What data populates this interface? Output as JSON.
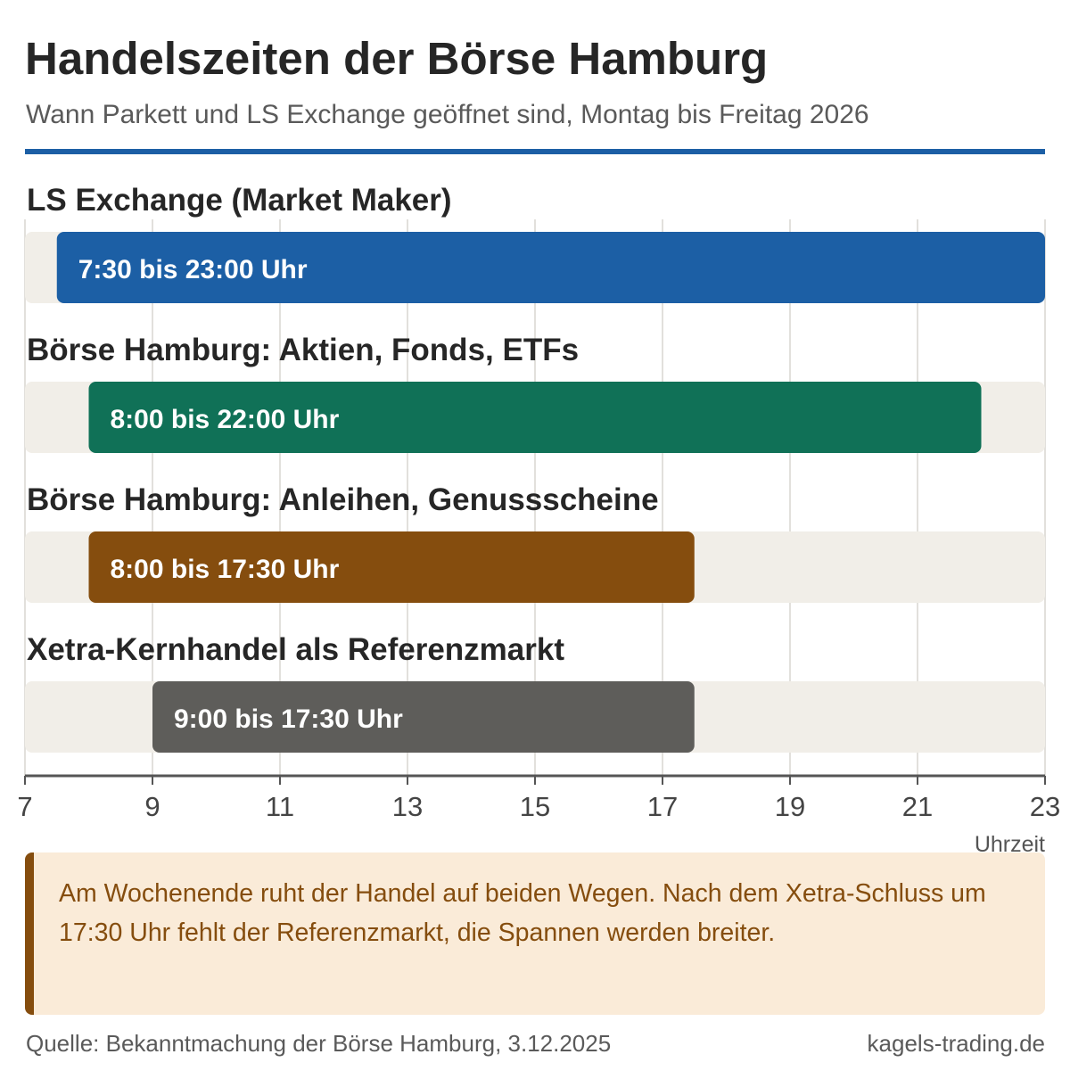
{
  "header": {
    "title": "Handelszeiten der Börse Hamburg",
    "subtitle": "Wann Parkett und LS Exchange geöffnet sind, Montag bis Freitag 2026"
  },
  "chart_data": {
    "type": "bar",
    "orientation": "horizontal-range",
    "xlabel": "Uhrzeit",
    "xlim": [
      7,
      23
    ],
    "xticks": [
      7,
      9,
      11,
      13,
      15,
      17,
      19,
      21,
      23
    ],
    "grid": true,
    "series": [
      {
        "name": "LS Exchange (Market Maker)",
        "start": 7.5,
        "end": 23,
        "label": "7:30 bis 23:00 Uhr",
        "color": "#1c5fa5"
      },
      {
        "name": "Börse Hamburg: Aktien, Fonds, ETFs",
        "start": 8,
        "end": 22,
        "label": "8:00 bis 22:00 Uhr",
        "color": "#107157"
      },
      {
        "name": "Börse Hamburg: Anleihen, Genussscheine",
        "start": 8,
        "end": 17.5,
        "label": "8:00 bis 17:30 Uhr",
        "color": "#854d0e"
      },
      {
        "name": "Xetra-Kernhandel als Referenzmarkt",
        "start": 9,
        "end": 17.5,
        "label": "9:00 bis 17:30 Uhr",
        "color": "#5e5d5a"
      }
    ]
  },
  "note": {
    "text": "Am Wochenende ruht der Handel auf beiden Wegen. Nach dem Xetra-Schluss um 17:30 Uhr fehlt der Referenzmarkt, die Spannen werden breiter."
  },
  "footer": {
    "source": "Quelle: Bekanntmachung der Börse Hamburg, 3.12.2025",
    "brand": "kagels-trading.de"
  }
}
